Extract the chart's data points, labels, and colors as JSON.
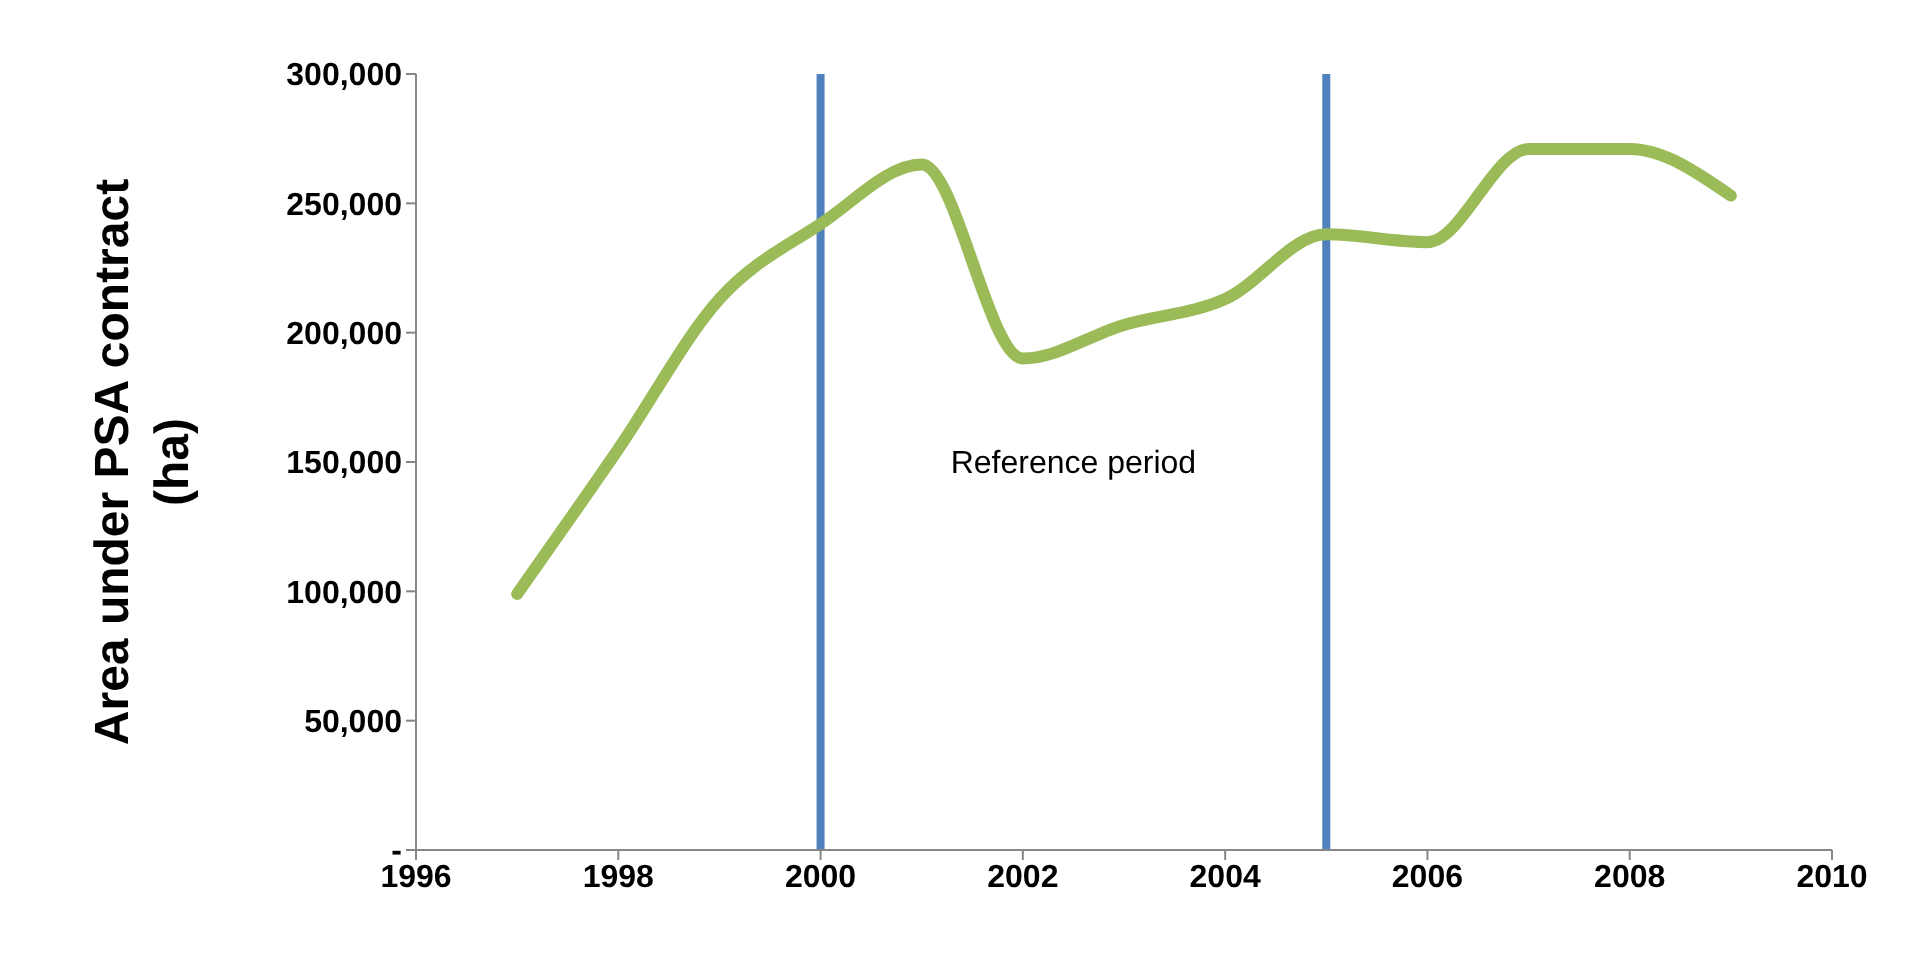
{
  "chart_data": {
    "type": "line",
    "ylabel": "Area under PSA contract (ha)",
    "x": [
      1997,
      1998,
      1999,
      2000,
      2001,
      2002,
      2003,
      2004,
      2005,
      2006,
      2007,
      2008,
      2009
    ],
    "series": [
      {
        "color": "#9bbb59",
        "values": [
          99000,
          155000,
          213000,
          242000,
          265000,
          190000,
          203000,
          213000,
          238000,
          235000,
          271000,
          271000,
          253000
        ]
      }
    ],
    "xlim": [
      1996,
      2010
    ],
    "xticks": [
      1996,
      1998,
      2000,
      2002,
      2004,
      2006,
      2008,
      2010
    ],
    "ylim": [
      0,
      300000
    ],
    "yticks": [
      {
        "value": 0,
        "label": "-"
      },
      {
        "value": 50000,
        "label": "50,000"
      },
      {
        "value": 100000,
        "label": "100,000"
      },
      {
        "value": 150000,
        "label": "150,000"
      },
      {
        "value": 200000,
        "label": "200,000"
      },
      {
        "value": 250000,
        "label": "250,000"
      },
      {
        "value": 300000,
        "label": "300,000"
      }
    ],
    "ref_lines": [
      {
        "axis": "x",
        "value": 2000,
        "color": "#4f81bd"
      },
      {
        "axis": "x",
        "value": 2005,
        "color": "#4f81bd"
      }
    ],
    "annotations": [
      "Reference period"
    ],
    "grid": false,
    "legend": false,
    "marker": "none",
    "line_style": "solid"
  }
}
